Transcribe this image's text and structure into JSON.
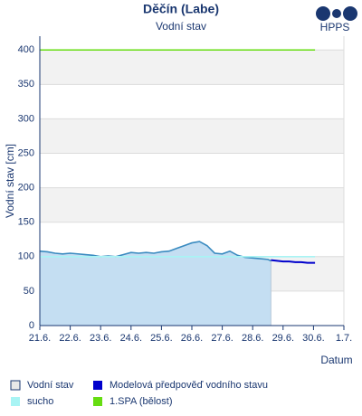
{
  "chart_data": {
    "type": "line",
    "title": "Děčín (Labe)",
    "subtitle": "Vodní stav",
    "xlabel": "Datum",
    "ylabel": "Vodní stav [cm]",
    "xlim": [
      0,
      10
    ],
    "xticks": [
      {
        "value": 0,
        "label": "21.6."
      },
      {
        "value": 1,
        "label": "22.6."
      },
      {
        "value": 2,
        "label": "23.6."
      },
      {
        "value": 3,
        "label": "24.6."
      },
      {
        "value": 4,
        "label": "25.6."
      },
      {
        "value": 5,
        "label": "26.6."
      },
      {
        "value": 6,
        "label": "27.6."
      },
      {
        "value": 7,
        "label": "28.6."
      },
      {
        "value": 8,
        "label": "29.6."
      },
      {
        "value": 9,
        "label": "30.6."
      },
      {
        "value": 10,
        "label": "1.7."
      }
    ],
    "ylim": [
      0,
      420
    ],
    "yticks": [
      0,
      50,
      100,
      150,
      200,
      250,
      300,
      350,
      400
    ],
    "grid": true,
    "series": [
      {
        "name": "Vodní stav",
        "color": "#3a8bc0",
        "fill": "#c4def2",
        "style": "area",
        "x": [
          0,
          0.25,
          0.5,
          0.75,
          1,
          1.25,
          1.5,
          1.75,
          2,
          2.25,
          2.5,
          2.75,
          3,
          3.25,
          3.5,
          3.75,
          4,
          4.25,
          4.5,
          4.75,
          5,
          5.25,
          5.5,
          5.75,
          6,
          6.25,
          6.5,
          6.75,
          7,
          7.25,
          7.5,
          7.6
        ],
        "values": [
          108,
          107,
          105,
          104,
          105,
          104,
          103,
          102,
          100,
          101,
          100,
          103,
          106,
          105,
          106,
          105,
          107,
          108,
          112,
          116,
          120,
          122,
          116,
          105,
          104,
          108,
          102,
          99,
          98,
          97,
          96,
          94
        ]
      },
      {
        "name": "Modelová předpověď vodního stavu",
        "color": "#0000cc",
        "style": "line",
        "x": [
          7.6,
          7.8,
          8,
          8.2,
          8.4,
          8.6,
          8.8,
          9.05
        ],
        "values": [
          95,
          94,
          93,
          93,
          92,
          92,
          91,
          91
        ]
      },
      {
        "name": "sucho",
        "color": "#a8f4f4",
        "style": "line",
        "x": [
          0,
          9.05
        ],
        "values": [
          100,
          100
        ]
      },
      {
        "name": "1.SPA (bělost)",
        "color": "#66dd11",
        "style": "line",
        "x": [
          0,
          9.05
        ],
        "values": [
          400,
          400
        ]
      }
    ]
  },
  "logo": "HPPS"
}
